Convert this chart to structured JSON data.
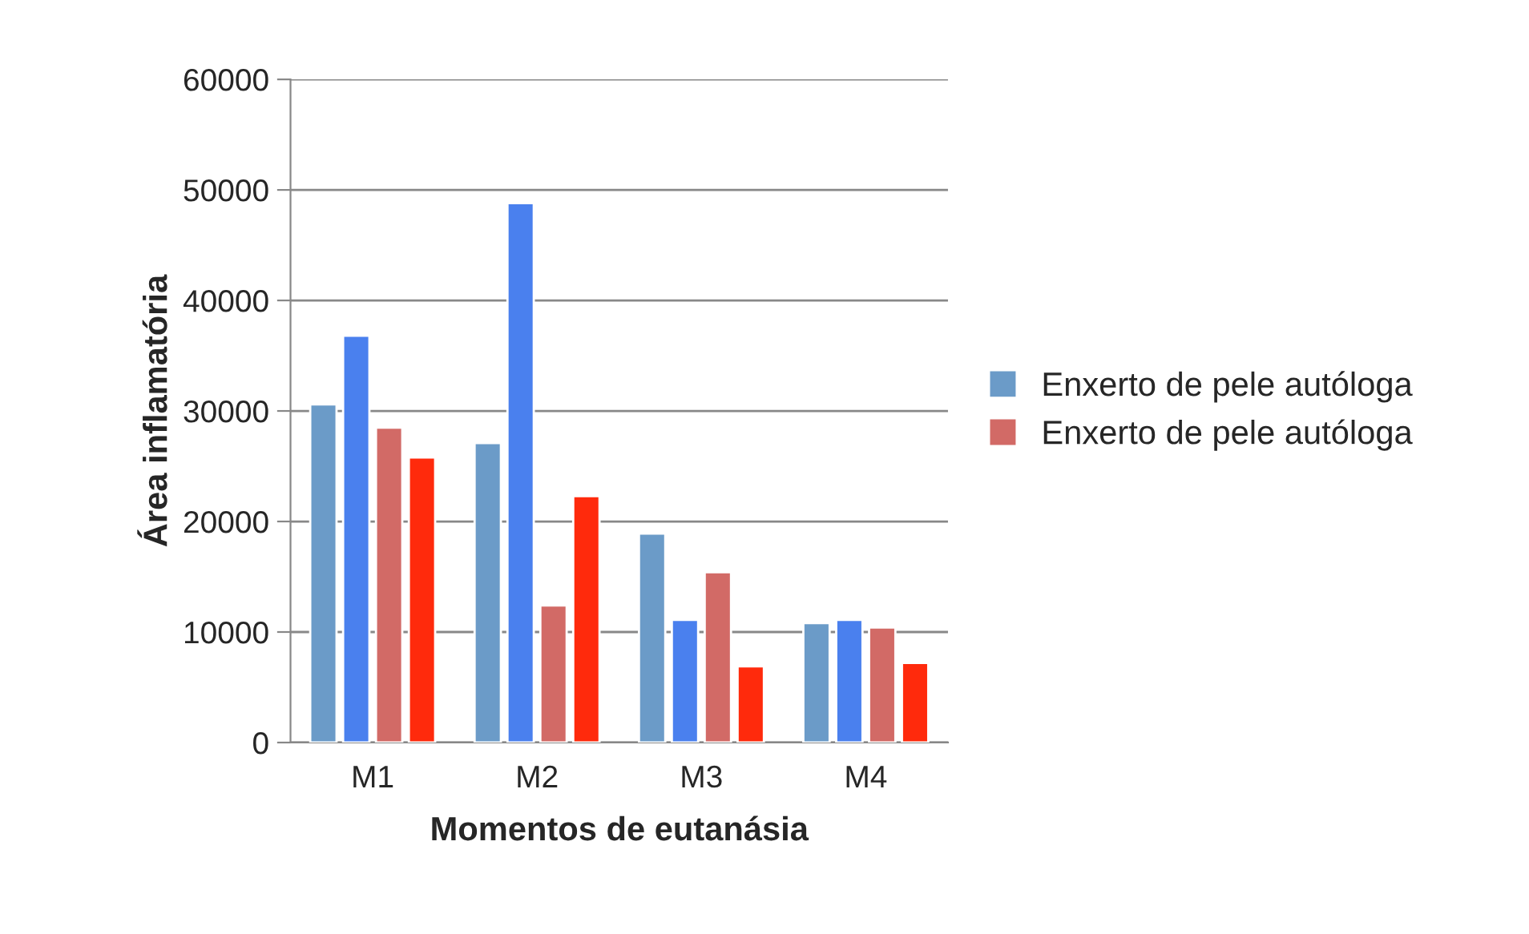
{
  "chart_data": {
    "type": "bar",
    "xlabel": "Momentos de eutanásia",
    "ylabel": "Área inflamatória",
    "categories": [
      "M1",
      "M2",
      "M3",
      "M4"
    ],
    "series": [
      {
        "name": "Enxerto de pele autóloga",
        "color": "#6b9bc8",
        "values": [
          30600,
          27100,
          18900,
          10800
        ]
      },
      {
        "color": "#4a80ee",
        "values": [
          36800,
          48800,
          11100,
          11100
        ]
      },
      {
        "name": "Enxerto de pele autóloga",
        "color": "#d26a66",
        "values": [
          28500,
          12400,
          15400,
          10400
        ]
      },
      {
        "color": "#ff2a0c",
        "values": [
          25800,
          22300,
          6900,
          7200
        ]
      }
    ],
    "ylim": [
      0,
      60000
    ],
    "yticks": [
      0,
      10000,
      20000,
      30000,
      40000,
      50000,
      60000
    ],
    "grid": "y",
    "legend": "right"
  }
}
